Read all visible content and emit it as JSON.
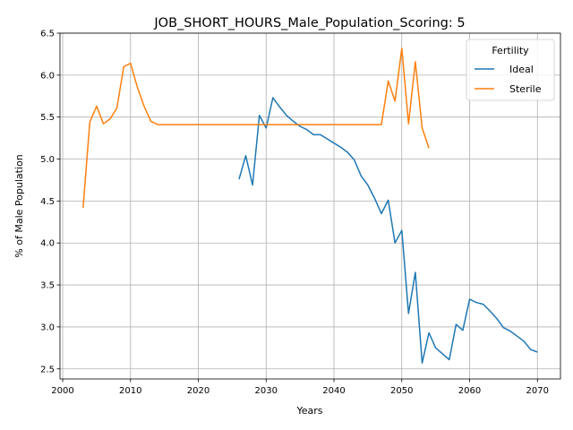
{
  "chart_data": {
    "type": "line",
    "title": "JOB_SHORT_HOURS_Male_Population_Scoring: 5",
    "xlabel": "Years",
    "ylabel": "% of Male Population",
    "xlim": [
      1999.6,
      2073.4
    ],
    "ylim": [
      2.38,
      6.5
    ],
    "xticks": [
      2000,
      2010,
      2020,
      2030,
      2040,
      2050,
      2060,
      2070
    ],
    "yticks": [
      2.5,
      3.0,
      3.5,
      4.0,
      4.5,
      5.0,
      5.5,
      6.0,
      6.5
    ],
    "xtick_labels": [
      "2000",
      "2010",
      "2020",
      "2030",
      "2040",
      "2050",
      "2060",
      "2070"
    ],
    "ytick_labels": [
      "2.5",
      "3.0",
      "3.5",
      "4.0",
      "4.5",
      "5.0",
      "5.5",
      "6.0",
      "6.5"
    ],
    "grid": true,
    "legend": {
      "title": "Fertility",
      "position": "top-right"
    },
    "series": [
      {
        "name": "Ideal",
        "color": "#1f77b4",
        "x": [
          2026,
          2027,
          2028,
          2029,
          2030,
          2031,
          2032,
          2033,
          2034,
          2035,
          2036,
          2037,
          2038,
          2039,
          2040,
          2041,
          2042,
          2043,
          2044,
          2045,
          2046,
          2047,
          2048,
          2049,
          2050,
          2051,
          2052,
          2053,
          2054,
          2055,
          2056,
          2057,
          2058,
          2059,
          2060,
          2061,
          2062,
          2063,
          2064,
          2065,
          2066,
          2067,
          2068,
          2069,
          2070
        ],
        "y": [
          4.76,
          5.04,
          4.69,
          5.52,
          5.37,
          5.73,
          5.62,
          5.52,
          5.45,
          5.39,
          5.35,
          5.29,
          5.29,
          5.24,
          5.19,
          5.14,
          5.08,
          4.99,
          4.8,
          4.69,
          4.53,
          4.35,
          4.51,
          4.0,
          4.15,
          3.16,
          3.65,
          2.57,
          2.93,
          2.75,
          2.68,
          2.61,
          3.03,
          2.96,
          3.33,
          3.29,
          3.27,
          3.19,
          3.1,
          2.99,
          2.95,
          2.89,
          2.83,
          2.73,
          2.7
        ]
      },
      {
        "name": "Sterile",
        "color": "#ff7f0e",
        "x": [
          2003,
          2004,
          2005,
          2006,
          2007,
          2008,
          2009,
          2010,
          2011,
          2012,
          2013,
          2014,
          2015,
          2020,
          2025,
          2030,
          2035,
          2040,
          2045,
          2047,
          2048,
          2049,
          2050,
          2051,
          2052,
          2053,
          2054
        ],
        "y": [
          4.42,
          5.44,
          5.63,
          5.42,
          5.48,
          5.61,
          6.1,
          6.14,
          5.86,
          5.63,
          5.45,
          5.41,
          5.41,
          5.41,
          5.41,
          5.41,
          5.41,
          5.41,
          5.41,
          5.41,
          5.93,
          5.69,
          6.32,
          5.42,
          6.16,
          5.37,
          5.13
        ]
      }
    ]
  }
}
